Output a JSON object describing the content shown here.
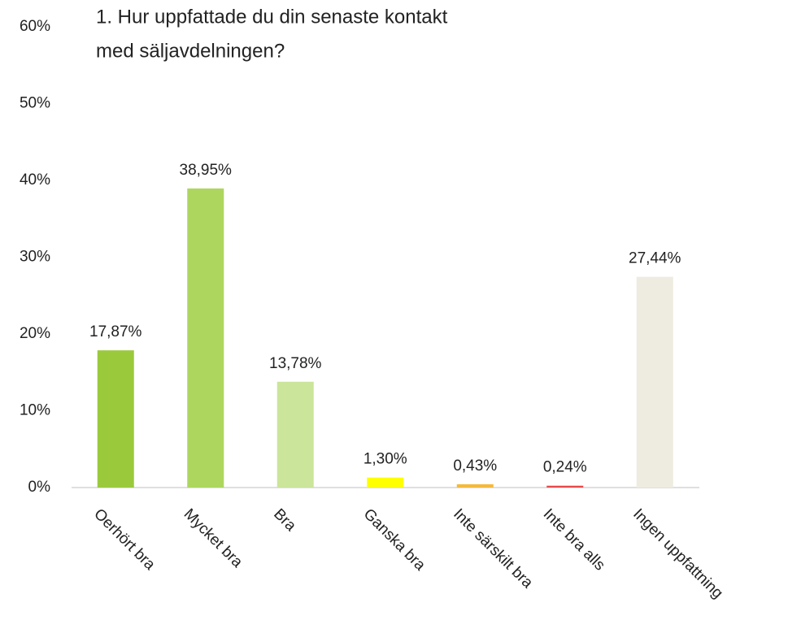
{
  "chart_data": {
    "type": "bar",
    "title": [
      "1. Hur uppfattade du din senaste kontakt",
      "med säljavdelningen?"
    ],
    "categories": [
      "Oerhört bra",
      "Mycket bra",
      "Bra",
      "Ganska bra",
      "Inte särskilt bra",
      "Inte bra alls",
      "Ingen uppfattning"
    ],
    "values": [
      17.87,
      38.95,
      13.78,
      1.3,
      0.43,
      0.24,
      27.44
    ],
    "value_labels": [
      "17,87%",
      "38,95%",
      "13,78%",
      "1,30%",
      "0,43%",
      "0,24%",
      "27,44%"
    ],
    "colors": [
      "#9aca3c",
      "#add65f",
      "#cbe59a",
      "#ffff00",
      "#f5b93a",
      "#e84a4a",
      "#eeebe0"
    ],
    "ylim": [
      0,
      60
    ],
    "yticks": [
      {
        "value": 0,
        "label": "0%"
      },
      {
        "value": 10,
        "label": "10%"
      },
      {
        "value": 20,
        "label": "20%"
      },
      {
        "value": 30,
        "label": "30%"
      },
      {
        "value": 40,
        "label": "40%"
      },
      {
        "value": 50,
        "label": "50%"
      },
      {
        "value": 60,
        "label": "60%"
      }
    ],
    "grid": false
  }
}
